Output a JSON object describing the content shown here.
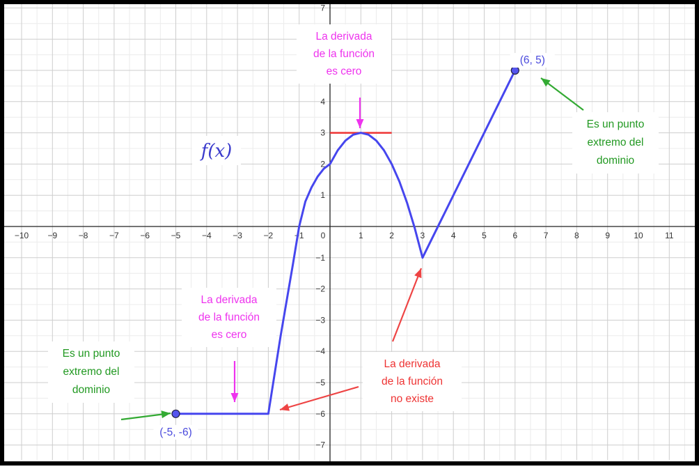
{
  "chart_data": {
    "type": "line",
    "x_ticks": [
      "−10",
      "−9",
      "−8",
      "−7",
      "−6",
      "−5",
      "−4",
      "−3",
      "−2",
      "−1",
      "0",
      "1",
      "2",
      "3",
      "4",
      "5",
      "6",
      "7",
      "8",
      "9",
      "10",
      "11"
    ],
    "y_ticks": [
      "7",
      "4",
      "3",
      "2",
      "1",
      "−1",
      "−2",
      "−3",
      "−4",
      "−5",
      "−6",
      "−7"
    ],
    "xlim": [
      -10.4,
      11.8
    ],
    "ylim": [
      -7.3,
      7.0
    ],
    "grid": true,
    "function_label": "f(x)",
    "curve": [
      [
        -5,
        -6
      ],
      [
        -2,
        -6
      ],
      [
        -1.6,
        -3.5
      ],
      [
        -1.2,
        -1.2
      ],
      [
        -1,
        0
      ],
      [
        -0.8,
        0.8
      ],
      [
        -0.6,
        1.25
      ],
      [
        -0.4,
        1.6
      ],
      [
        -0.2,
        1.85
      ],
      [
        0,
        2
      ],
      [
        0.25,
        2.44
      ],
      [
        0.5,
        2.75
      ],
      [
        0.75,
        2.94
      ],
      [
        1,
        3
      ],
      [
        1.25,
        2.94
      ],
      [
        1.5,
        2.75
      ],
      [
        1.75,
        2.44
      ],
      [
        2,
        2
      ],
      [
        2.25,
        1.44
      ],
      [
        2.5,
        0.75
      ],
      [
        2.75,
        -0.06
      ],
      [
        3,
        -1
      ],
      [
        6,
        5
      ]
    ],
    "tangent_segment": [
      [
        0,
        3
      ],
      [
        2,
        3
      ]
    ],
    "points": [
      {
        "x": -5,
        "y": -6,
        "label": "(-5, -6)"
      },
      {
        "x": 6,
        "y": 5,
        "label": "(6, 5)"
      }
    ],
    "annotations": [
      {
        "lines": [
          "La derivada",
          "de la función",
          "es cero"
        ],
        "color": "#ee33ee"
      },
      {
        "lines": [
          "La derivada",
          "de la función",
          "es cero"
        ],
        "color": "#ee33ee"
      },
      {
        "lines": [
          "La derivada",
          "de la función",
          "no existe"
        ],
        "color": "#ee3333"
      },
      {
        "lines": [
          "Es un punto",
          "extremo del",
          "dominio"
        ],
        "color": "#229922"
      },
      {
        "lines": [
          "Es un punto",
          "extremo del",
          "dominio"
        ],
        "color": "#229922"
      }
    ],
    "colors": {
      "curve": "#4646ee",
      "tangent": "#ee3333",
      "point_fill": "#5555ee",
      "magenta": "#ee33ee",
      "red": "#ee4444",
      "green": "#33aa33"
    }
  }
}
